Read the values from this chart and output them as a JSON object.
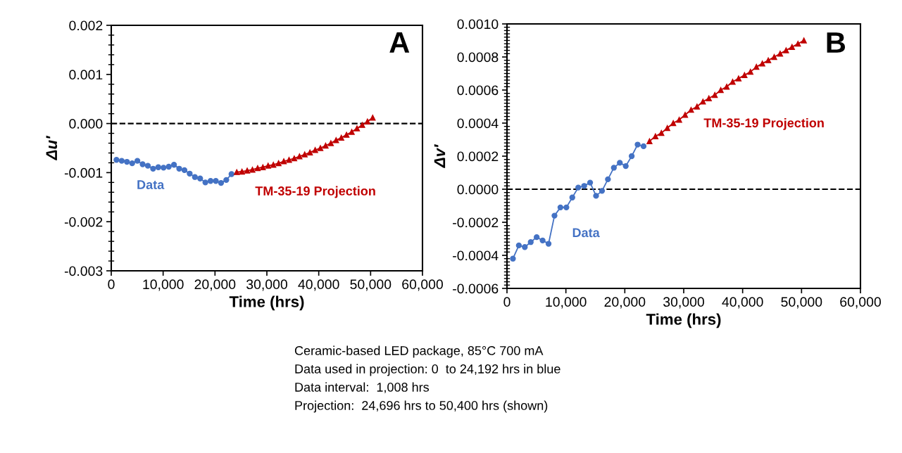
{
  "chart_data": [
    {
      "type": "line",
      "xlabel": "Time (hrs)",
      "ylabel": "Δu′",
      "xlim": [
        0,
        60000
      ],
      "ylim": [
        -0.003,
        0.002
      ],
      "xticks": [
        {
          "value": 0,
          "label": "0"
        },
        {
          "value": 10000,
          "label": "10,000"
        },
        {
          "value": 20000,
          "label": "20,000"
        },
        {
          "value": 30000,
          "label": "30,000"
        },
        {
          "value": 40000,
          "label": "40,000"
        },
        {
          "value": 50000,
          "label": "50,000"
        },
        {
          "value": 60000,
          "label": "60,000"
        }
      ],
      "yticks": [
        {
          "value": -0.003,
          "label": "-0.003"
        },
        {
          "value": -0.002,
          "label": "-0.002"
        },
        {
          "value": -0.001,
          "label": "-0.001"
        },
        {
          "value": 0,
          "label": "0.000"
        },
        {
          "value": 0.001,
          "label": "0.001"
        },
        {
          "value": 0.002,
          "label": "0.002"
        }
      ],
      "grid": false,
      "legend": false,
      "ref_lines": [
        {
          "axis": "y",
          "value": 0,
          "color": "#000000",
          "line_style": "dashed"
        }
      ],
      "annotations": [
        "A",
        "Ceramic-based LED package, 85°C 700 mA",
        "Data used in projection: 0  to 24,192 hrs in blue",
        "Data interval:  1,008 hrs",
        "Projection:  24,696 hrs to 50,400 hrs (shown)"
      ],
      "series": [
        {
          "name": "Data",
          "color": "#4472c4",
          "marker": "circle",
          "line_style": "solid",
          "x": [
            1008,
            2016,
            3024,
            4032,
            5040,
            6048,
            7056,
            8064,
            9072,
            10080,
            11088,
            12096,
            13104,
            14112,
            15120,
            16128,
            17136,
            18144,
            19152,
            20160,
            21168,
            22176,
            23184
          ],
          "values": [
            -0.00074,
            -0.00076,
            -0.00078,
            -0.00081,
            -0.00076,
            -0.00083,
            -0.00086,
            -0.00092,
            -0.00089,
            -0.0009,
            -0.00088,
            -0.00084,
            -0.00092,
            -0.00095,
            -0.00102,
            -0.00109,
            -0.00112,
            -0.0012,
            -0.00117,
            -0.00117,
            -0.00121,
            -0.00115,
            -0.00103
          ]
        },
        {
          "name": "TM-35-19 Projection",
          "color": "#c00000",
          "marker": "triangle",
          "line_style": "solid",
          "x": [
            24192,
            25200,
            26208,
            27216,
            28224,
            29232,
            30240,
            31248,
            32256,
            33264,
            34272,
            35280,
            36288,
            37296,
            38304,
            39312,
            40320,
            41328,
            42336,
            43344,
            44352,
            45360,
            46368,
            47376,
            48384,
            49392,
            50400
          ],
          "values": [
            -0.00099,
            -0.00098,
            -0.00096,
            -0.00094,
            -0.00091,
            -0.00089,
            -0.00086,
            -0.00084,
            -0.00081,
            -0.00077,
            -0.00074,
            -0.00071,
            -0.00067,
            -0.00063,
            -0.00059,
            -0.00054,
            -0.0005,
            -0.00045,
            -0.0004,
            -0.00034,
            -0.00029,
            -0.00023,
            -0.00017,
            -0.0001,
            -3e-05,
            4e-05,
            0.00012
          ]
        }
      ]
    },
    {
      "type": "line",
      "xlabel": "Time (hrs)",
      "ylabel": "Δv′",
      "xlim": [
        0,
        60000
      ],
      "ylim": [
        -0.0006,
        0.001
      ],
      "xticks": [
        {
          "value": 0,
          "label": "0"
        },
        {
          "value": 10000,
          "label": "10,000"
        },
        {
          "value": 20000,
          "label": "20,000"
        },
        {
          "value": 30000,
          "label": "30,000"
        },
        {
          "value": 40000,
          "label": "40,000"
        },
        {
          "value": 50000,
          "label": "50,000"
        },
        {
          "value": 60000,
          "label": "60,000"
        }
      ],
      "yticks": [
        {
          "value": -0.0006,
          "label": "-0.0006"
        },
        {
          "value": -0.0004,
          "label": "-0.0004"
        },
        {
          "value": -0.0002,
          "label": "-0.0002"
        },
        {
          "value": 0,
          "label": "0.0000"
        },
        {
          "value": 0.0002,
          "label": "0.0002"
        },
        {
          "value": 0.0004,
          "label": "0.0004"
        },
        {
          "value": 0.0006,
          "label": "0.0006"
        },
        {
          "value": 0.0008,
          "label": "0.0008"
        },
        {
          "value": 0.001,
          "label": "0.0010"
        }
      ],
      "grid": false,
      "legend": false,
      "ref_lines": [
        {
          "axis": "y",
          "value": 0,
          "color": "#000000",
          "line_style": "dashed"
        }
      ],
      "annotations": [
        "B"
      ],
      "series": [
        {
          "name": "Data",
          "color": "#4472c4",
          "marker": "circle",
          "line_style": "solid",
          "x": [
            1008,
            2016,
            3024,
            4032,
            5040,
            6048,
            7056,
            8064,
            9072,
            10080,
            11088,
            12096,
            13104,
            14112,
            15120,
            16128,
            17136,
            18144,
            19152,
            20160,
            21168,
            22176,
            23184
          ],
          "values": [
            -0.00042,
            -0.00034,
            -0.00035,
            -0.00032,
            -0.00029,
            -0.00031,
            -0.00033,
            -0.00016,
            -0.00011,
            -0.00011,
            -5e-05,
            1e-05,
            2e-05,
            4e-05,
            -4e-05,
            -1e-05,
            6e-05,
            0.00013,
            0.00016,
            0.00014,
            0.0002,
            0.00027,
            0.00026
          ]
        },
        {
          "name": "TM-35-19 Projection",
          "color": "#c00000",
          "marker": "triangle",
          "line_style": "solid",
          "x": [
            24192,
            25200,
            26208,
            27216,
            28224,
            29232,
            30240,
            31248,
            32256,
            33264,
            34272,
            35280,
            36288,
            37296,
            38304,
            39312,
            40320,
            41328,
            42336,
            43344,
            44352,
            45360,
            46368,
            47376,
            48384,
            49392,
            50400
          ],
          "values": [
            0.00029,
            0.00032,
            0.00034,
            0.00037,
            0.0004,
            0.00042,
            0.00045,
            0.00048,
            0.0005,
            0.00053,
            0.00055,
            0.00057,
            0.0006,
            0.00062,
            0.00065,
            0.00067,
            0.00069,
            0.00071,
            0.00074,
            0.00076,
            0.00078,
            0.0008,
            0.00082,
            0.00084,
            0.00086,
            0.00088,
            0.0009
          ]
        }
      ]
    }
  ]
}
